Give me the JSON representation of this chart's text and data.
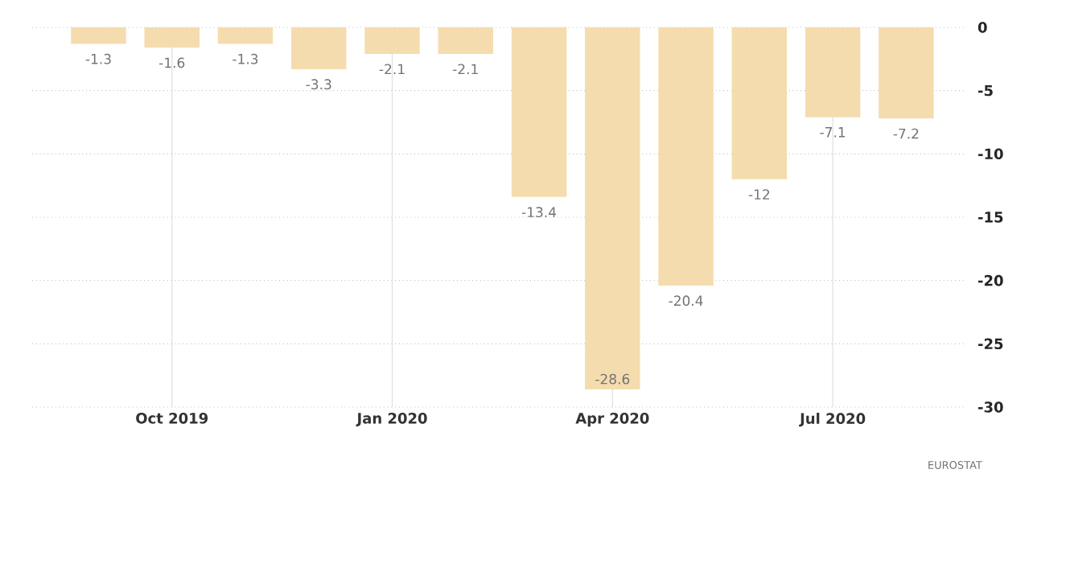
{
  "chart_data": {
    "type": "bar",
    "x": [
      "2019-09",
      "2019-10",
      "2019-11",
      "2019-12",
      "2020-01",
      "2020-02",
      "2020-03",
      "2020-04",
      "2020-05",
      "2020-06",
      "2020-07",
      "2020-08"
    ],
    "values": [
      -1.3,
      -1.6,
      -1.3,
      -3.3,
      -2.1,
      -2.1,
      -13.4,
      -28.6,
      -20.4,
      -12,
      -7.1,
      -7.2
    ],
    "color": "#f5dcae",
    "data_labels": true,
    "xlim": [
      "2019-08-04",
      "2020-08-26"
    ],
    "xticks": [
      {
        "value": "2019-10",
        "label": "Oct 2019"
      },
      {
        "value": "2020-01",
        "label": "Jan 2020"
      },
      {
        "value": "2020-04",
        "label": "Apr 2020"
      },
      {
        "value": "2020-07",
        "label": "Jul 2020"
      }
    ],
    "ylim": [
      -30,
      0
    ],
    "yticks": [
      -30,
      -25,
      -20,
      -15,
      -10,
      -5,
      0
    ],
    "grid": true,
    "annotations": [
      "EUROSTAT"
    ]
  }
}
